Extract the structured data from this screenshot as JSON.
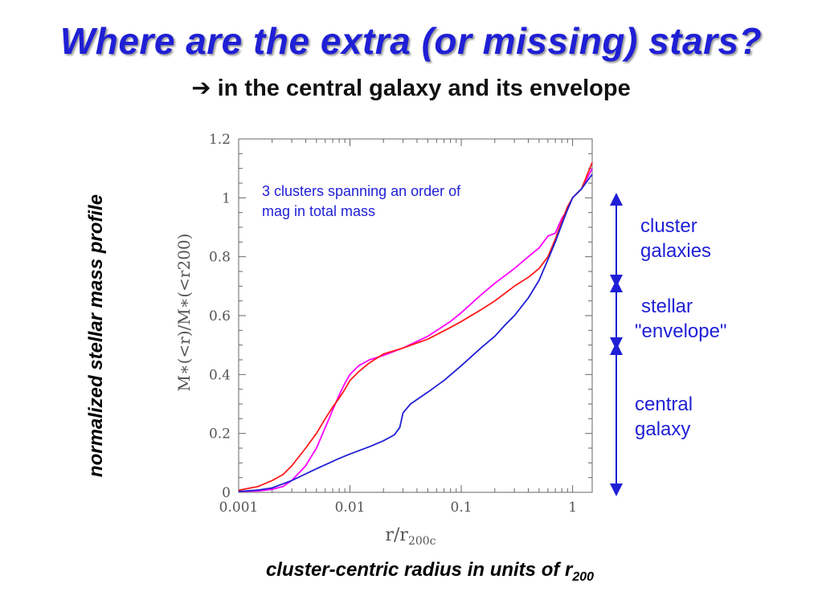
{
  "slide": {
    "title": "Where are the extra (or missing) stars?",
    "subtitle_arrow": "➔",
    "subtitle": "in the central galaxy and its envelope",
    "y_caption": "normalized stellar mass profile",
    "x_caption": "cluster-centric radius in units of r",
    "x_caption_sub": "200"
  },
  "annotations": {
    "cluster_galaxies": [
      "cluster",
      "galaxies"
    ],
    "stellar_envelope": [
      "stellar",
      "\"envelope\""
    ],
    "central_galaxy": [
      "central",
      "galaxy"
    ]
  },
  "chart_data": {
    "type": "line",
    "xscale": "log",
    "xlim": [
      0.001,
      1.5
    ],
    "ylim": [
      0,
      1.2
    ],
    "xticks": [
      0.001,
      0.01,
      0.1,
      1
    ],
    "xticklabels": [
      "0.001",
      "0.01",
      "0.1",
      "1"
    ],
    "yticks": [
      0,
      0.2,
      0.4,
      0.6,
      0.8,
      1,
      1.2
    ],
    "yticklabels": [
      "0",
      "0.2",
      "0.4",
      "0.6",
      "0.8",
      "1",
      "1.2"
    ],
    "xlabel": "r/r",
    "xlabel_sub": "200c",
    "ylabel": "M∗(<r)/M∗(<r200)",
    "annotation": [
      "3 clusters spanning an order of",
      "mag in total mass"
    ],
    "grid": false,
    "series": [
      {
        "color": "#ff00ff",
        "x": [
          0.001,
          0.0015,
          0.002,
          0.0025,
          0.003,
          0.004,
          0.005,
          0.006,
          0.007,
          0.008,
          0.009,
          0.01,
          0.012,
          0.015,
          0.02,
          0.03,
          0.05,
          0.08,
          0.1,
          0.15,
          0.2,
          0.3,
          0.4,
          0.5,
          0.6,
          0.7,
          0.8,
          0.9,
          1.0,
          1.2,
          1.5
        ],
        "y": [
          0.003,
          0.005,
          0.01,
          0.02,
          0.04,
          0.09,
          0.15,
          0.22,
          0.28,
          0.33,
          0.37,
          0.4,
          0.43,
          0.45,
          0.465,
          0.49,
          0.53,
          0.58,
          0.61,
          0.67,
          0.71,
          0.76,
          0.8,
          0.83,
          0.87,
          0.88,
          0.93,
          0.96,
          1.0,
          1.03,
          1.1
        ]
      },
      {
        "color": "#ff1a1a",
        "x": [
          0.001,
          0.0015,
          0.002,
          0.0025,
          0.003,
          0.004,
          0.005,
          0.006,
          0.007,
          0.008,
          0.009,
          0.01,
          0.012,
          0.015,
          0.02,
          0.03,
          0.05,
          0.08,
          0.1,
          0.15,
          0.2,
          0.3,
          0.4,
          0.5,
          0.6,
          0.7,
          0.8,
          0.9,
          1.0,
          1.2,
          1.5
        ],
        "y": [
          0.007,
          0.02,
          0.04,
          0.06,
          0.09,
          0.15,
          0.2,
          0.25,
          0.29,
          0.32,
          0.35,
          0.38,
          0.41,
          0.44,
          0.47,
          0.49,
          0.52,
          0.56,
          0.58,
          0.62,
          0.65,
          0.7,
          0.73,
          0.76,
          0.8,
          0.86,
          0.92,
          0.97,
          1.0,
          1.03,
          1.12
        ]
      },
      {
        "color": "#1f1fd6",
        "x": [
          0.001,
          0.0015,
          0.002,
          0.003,
          0.005,
          0.008,
          0.01,
          0.015,
          0.02,
          0.025,
          0.028,
          0.03,
          0.035,
          0.05,
          0.07,
          0.1,
          0.15,
          0.2,
          0.25,
          0.3,
          0.4,
          0.5,
          0.6,
          0.7,
          0.8,
          0.9,
          1.0,
          1.2,
          1.5
        ],
        "y": [
          0.003,
          0.008,
          0.015,
          0.04,
          0.08,
          0.115,
          0.13,
          0.155,
          0.175,
          0.195,
          0.22,
          0.27,
          0.3,
          0.34,
          0.38,
          0.43,
          0.49,
          0.53,
          0.57,
          0.6,
          0.66,
          0.72,
          0.79,
          0.85,
          0.91,
          0.96,
          1.0,
          1.03,
          1.08
        ]
      }
    ]
  }
}
